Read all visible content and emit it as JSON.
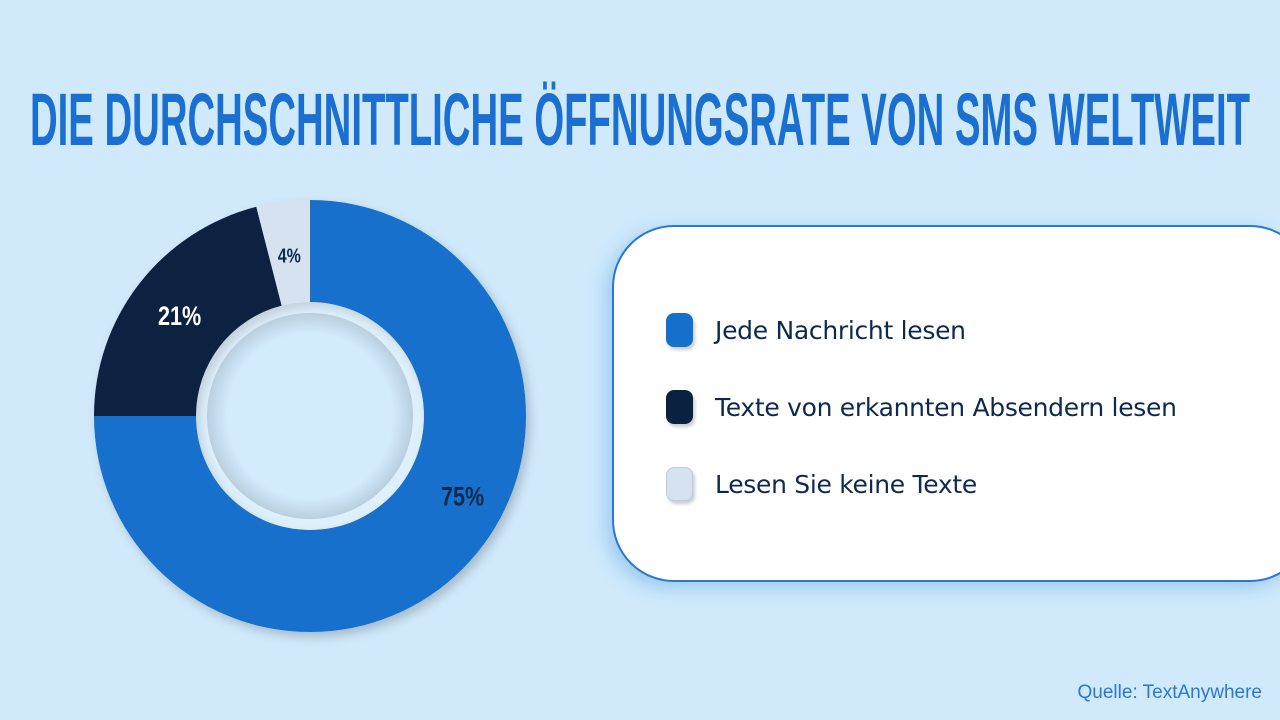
{
  "chart_data": {
    "type": "pie",
    "variant": "donut",
    "title": "DIE DURCHSCHNITTLICHE ÖFFNUNGSRATE VON SMS WELTWEIT",
    "categories": [
      "Jede Nachricht lesen",
      "Texte von erkannten Absendern lesen",
      "Lesen Sie keine Texte"
    ],
    "values": [
      75,
      21,
      4
    ],
    "data_labels": [
      "75%",
      "21%",
      "4%"
    ],
    "colors": [
      "#1570cc",
      "#0a2240",
      "#d4e3ef"
    ],
    "label_colors": [
      "#0d2a4e",
      "#ffffff",
      "#0d2a4e"
    ],
    "legend_placement": "right"
  },
  "source": "Quelle: TextAnywhere",
  "colors": {
    "background": "#d0eafc",
    "title": "#1a6fd0",
    "legend_border": "#2a78d2"
  }
}
